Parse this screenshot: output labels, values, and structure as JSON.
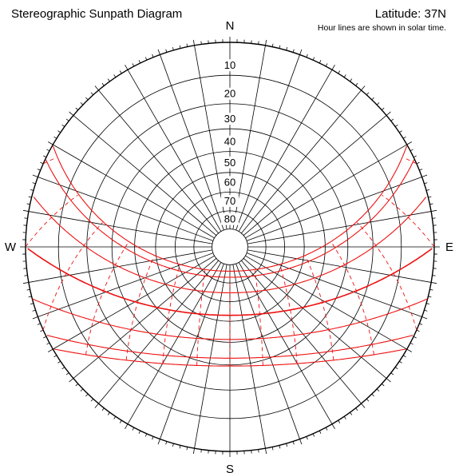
{
  "chart_data": {
    "type": "sunpath",
    "projection": "stereographic",
    "title": "Stereographic Sunpath Diagram",
    "latitude_label": "Latitude: 37N",
    "note": "Hour lines are shown in solar time.",
    "latitude_deg": 37,
    "cardinals": {
      "north": "N",
      "south": "S",
      "east": "E",
      "west": "W"
    },
    "altitude_rings": [
      10,
      20,
      30,
      40,
      50,
      60,
      70,
      80
    ],
    "altitude_labels": [
      "10",
      "20",
      "30",
      "40",
      "50",
      "60",
      "70",
      "80"
    ],
    "azimuth_spokes_every_deg": 10,
    "ticks_every_deg": 2,
    "declination_curves_deg": [
      23.45,
      20.1,
      11.7,
      0,
      -11.7,
      -20.1,
      -23.45
    ],
    "hour_lines_solar": [
      5,
      6,
      7,
      8,
      9,
      10,
      11,
      12,
      13,
      14,
      15,
      16,
      17,
      18,
      19
    ],
    "colors": {
      "grid": "#000000",
      "sunpath": "#ee1111"
    }
  }
}
